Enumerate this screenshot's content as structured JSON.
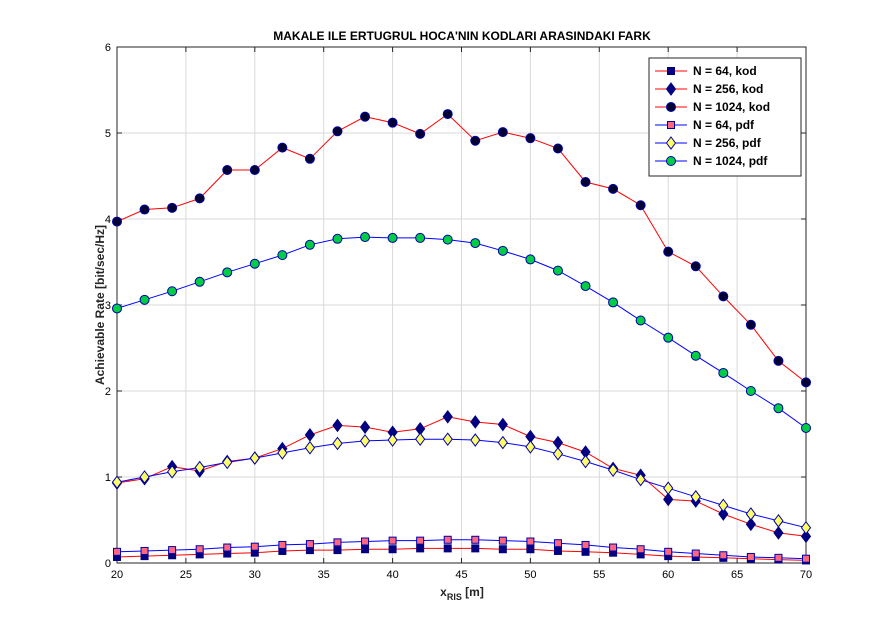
{
  "chart_data": {
    "type": "line",
    "title": "MAKALE ILE ERTUGRUL HOCA'NIN KODLARI ARASINDAKI FARK",
    "xlabel_main": "x",
    "xlabel_sub": "RIS",
    "xlabel_unit": " [m]",
    "ylabel": "Achievable Rate [bit/sec/Hz]",
    "xlim": [
      20,
      70
    ],
    "ylim": [
      0,
      6
    ],
    "xticks": [
      20,
      25,
      30,
      35,
      40,
      45,
      50,
      55,
      60,
      65,
      70
    ],
    "yticks": [
      0,
      1,
      2,
      3,
      4,
      5,
      6
    ],
    "grid": true,
    "legend_position": "top-right",
    "colors": {
      "red": "#ff0000",
      "blue": "#0000ff",
      "navy": "#000080",
      "pink": "#ff6680",
      "yellow": "#ffff66",
      "green": "#00cc44",
      "grid": "#d9d9d9"
    },
    "series": [
      {
        "name": "N = 64, kod",
        "line_color": "#ff0000",
        "marker": "square",
        "marker_fill": "#000080",
        "marker_edge": "#000080",
        "x": [
          20,
          22,
          24,
          26,
          28,
          30,
          32,
          34,
          36,
          38,
          40,
          42,
          44,
          46,
          48,
          50,
          52,
          54,
          56,
          58,
          60,
          62,
          64,
          66,
          68,
          70
        ],
        "y": [
          0.07,
          0.08,
          0.09,
          0.1,
          0.11,
          0.12,
          0.14,
          0.15,
          0.15,
          0.16,
          0.16,
          0.17,
          0.17,
          0.17,
          0.16,
          0.16,
          0.14,
          0.13,
          0.12,
          0.1,
          0.08,
          0.07,
          0.06,
          0.05,
          0.04,
          0.03
        ]
      },
      {
        "name": "N = 256, kod",
        "line_color": "#ff0000",
        "marker": "diamond",
        "marker_fill": "#000080",
        "marker_edge": "#000080",
        "x": [
          20,
          22,
          24,
          26,
          28,
          30,
          32,
          34,
          36,
          38,
          40,
          42,
          44,
          46,
          48,
          50,
          52,
          54,
          56,
          58,
          60,
          62,
          64,
          66,
          68,
          70
        ],
        "y": [
          0.93,
          0.98,
          1.12,
          1.07,
          1.18,
          1.22,
          1.33,
          1.49,
          1.6,
          1.58,
          1.52,
          1.56,
          1.7,
          1.64,
          1.61,
          1.47,
          1.4,
          1.29,
          1.1,
          1.02,
          0.74,
          0.72,
          0.57,
          0.45,
          0.35,
          0.31
        ]
      },
      {
        "name": "N = 1024, kod",
        "line_color": "#ff0000",
        "marker": "circle",
        "marker_fill": "#000033",
        "marker_edge": "#0000aa",
        "x": [
          20,
          22,
          24,
          26,
          28,
          30,
          32,
          34,
          36,
          38,
          40,
          42,
          44,
          46,
          48,
          50,
          52,
          54,
          56,
          58,
          60,
          62,
          64,
          66,
          68,
          70
        ],
        "y": [
          3.97,
          4.11,
          4.13,
          4.24,
          4.57,
          4.57,
          4.83,
          4.7,
          5.02,
          5.19,
          5.12,
          4.99,
          5.22,
          4.91,
          5.01,
          4.94,
          4.82,
          4.43,
          4.35,
          4.16,
          3.62,
          3.45,
          3.1,
          2.77,
          2.35,
          2.1
        ]
      },
      {
        "name": "N = 64, pdf",
        "line_color": "#0000ff",
        "marker": "square",
        "marker_fill": "#ff6680",
        "marker_edge": "#0000aa",
        "x": [
          20,
          22,
          24,
          26,
          28,
          30,
          32,
          34,
          36,
          38,
          40,
          42,
          44,
          46,
          48,
          50,
          52,
          54,
          56,
          58,
          60,
          62,
          64,
          66,
          68,
          70
        ],
        "y": [
          0.13,
          0.14,
          0.15,
          0.16,
          0.18,
          0.19,
          0.21,
          0.22,
          0.24,
          0.25,
          0.26,
          0.26,
          0.27,
          0.27,
          0.26,
          0.25,
          0.23,
          0.21,
          0.18,
          0.16,
          0.13,
          0.11,
          0.09,
          0.07,
          0.06,
          0.05
        ]
      },
      {
        "name": "N = 256, pdf",
        "line_color": "#0000ff",
        "marker": "diamond",
        "marker_fill": "#ffff66",
        "marker_edge": "#0000aa",
        "x": [
          20,
          22,
          24,
          26,
          28,
          30,
          32,
          34,
          36,
          38,
          40,
          42,
          44,
          46,
          48,
          50,
          52,
          54,
          56,
          58,
          60,
          62,
          64,
          66,
          68,
          70
        ],
        "y": [
          0.94,
          1.0,
          1.06,
          1.11,
          1.17,
          1.22,
          1.28,
          1.34,
          1.39,
          1.42,
          1.43,
          1.44,
          1.44,
          1.43,
          1.4,
          1.35,
          1.27,
          1.18,
          1.08,
          0.97,
          0.87,
          0.77,
          0.67,
          0.57,
          0.49,
          0.41
        ]
      },
      {
        "name": "N = 1024, pdf",
        "line_color": "#0000ff",
        "marker": "circle",
        "marker_fill": "#00cc44",
        "marker_edge": "#0000aa",
        "x": [
          20,
          22,
          24,
          26,
          28,
          30,
          32,
          34,
          36,
          38,
          40,
          42,
          44,
          46,
          48,
          50,
          52,
          54,
          56,
          58,
          60,
          62,
          64,
          66,
          68,
          70
        ],
        "y": [
          2.96,
          3.06,
          3.16,
          3.27,
          3.38,
          3.48,
          3.58,
          3.7,
          3.77,
          3.79,
          3.78,
          3.78,
          3.76,
          3.72,
          3.63,
          3.53,
          3.4,
          3.22,
          3.03,
          2.82,
          2.62,
          2.41,
          2.21,
          2.0,
          1.8,
          1.57
        ]
      }
    ]
  }
}
